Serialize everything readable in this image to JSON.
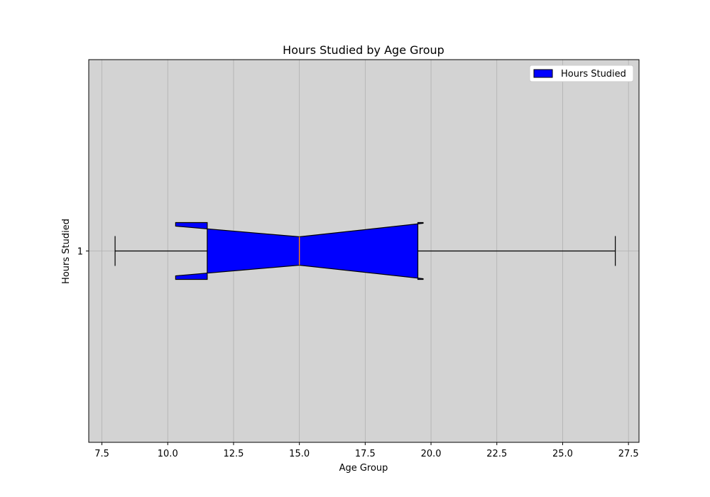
{
  "chart_data": {
    "type": "boxplot",
    "orientation": "horizontal",
    "notched": true,
    "title": "Hours Studied by Age Group",
    "xlabel": "Age Group",
    "ylabel": "Hours Studied",
    "xlim": [
      7.0,
      27.9
    ],
    "xticks": [
      7.5,
      10.0,
      12.5,
      15.0,
      17.5,
      20.0,
      22.5,
      25.0,
      27.5
    ],
    "xtick_labels": [
      "7.5",
      "10.0",
      "12.5",
      "15.0",
      "17.5",
      "20.0",
      "22.5",
      "25.0",
      "27.5"
    ],
    "yticks": [
      1
    ],
    "ytick_labels": [
      "1"
    ],
    "grid": true,
    "legend": {
      "placement": "top-right",
      "entries": [
        "Hours Studied"
      ]
    },
    "series": [
      {
        "name": "Hours Studied",
        "position": 1,
        "whisker_low": 8.0,
        "q1": 11.5,
        "median": 15.0,
        "q3": 19.5,
        "whisker_high": 27.0,
        "notch_low": 10.3,
        "notch_high": 19.7
      }
    ],
    "colors": {
      "box_fill": "#0000ff",
      "box_edge": "#000000",
      "median_line": "#ff7f0e",
      "plot_background": "#d3d3d3",
      "grid": "#b0b0b0"
    }
  }
}
